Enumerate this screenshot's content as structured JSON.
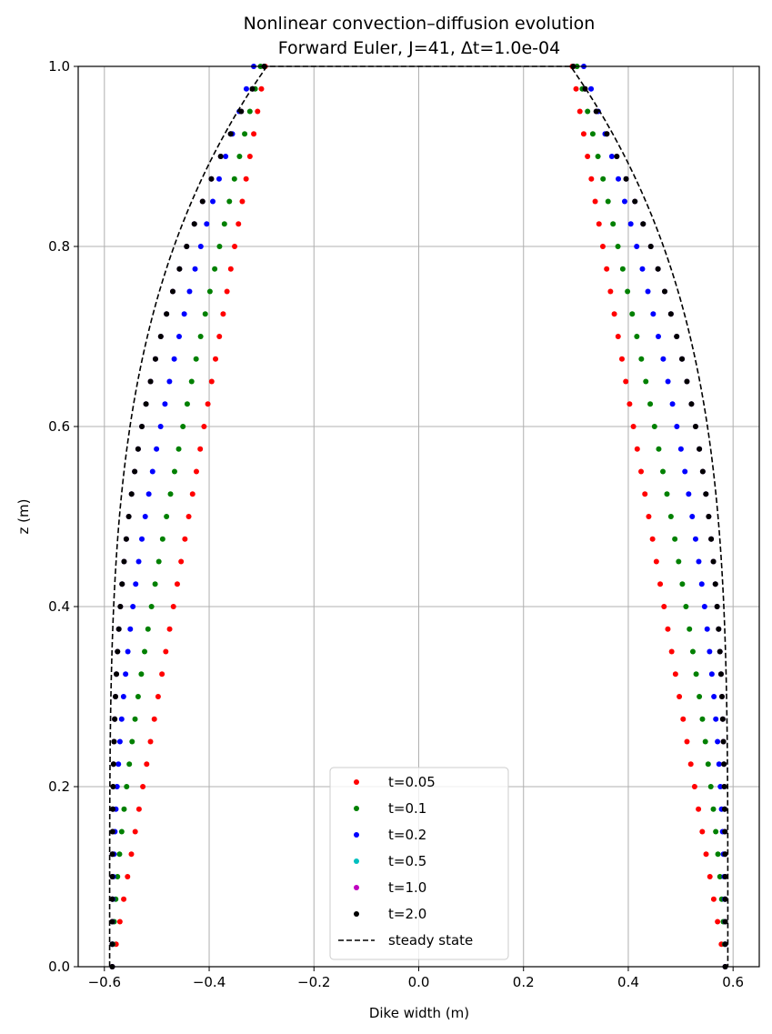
{
  "chart_data": {
    "type": "scatter",
    "title": [
      "Nonlinear convection–diffusion evolution",
      "Forward Euler, J=41, Δt=1.0e-04"
    ],
    "xlabel": "Dike width (m)",
    "ylabel": "z (m)",
    "xlim": [
      -0.65,
      0.65
    ],
    "ylim": [
      0.0,
      1.0
    ],
    "xticks": [
      "−0.6",
      "−0.4",
      "−0.2",
      "0.0",
      "0.2",
      "0.4",
      "0.6"
    ],
    "xtick_values": [
      -0.6,
      -0.4,
      -0.2,
      0.0,
      0.2,
      0.4,
      0.6
    ],
    "yticks": [
      "0.0",
      "0.2",
      "0.4",
      "0.6",
      "0.8",
      "1.0"
    ],
    "ytick_values": [
      0.0,
      0.2,
      0.4,
      0.6,
      0.8,
      1.0
    ],
    "grid": true,
    "legend_position": "bottom-center",
    "nodes": 41,
    "series": [
      {
        "name": "t=0.05",
        "color": "#ff0000",
        "kind": "points",
        "w_base": 0.585,
        "w_top": 0.293,
        "p": 1.0
      },
      {
        "name": "t=0.1",
        "color": "#008000",
        "kind": "points",
        "w_base": 0.585,
        "w_top": 0.302,
        "p": 1.45
      },
      {
        "name": "t=0.2",
        "color": "#0000ff",
        "kind": "points",
        "w_base": 0.585,
        "w_top": 0.315,
        "p": 2.1
      },
      {
        "name": "t=0.5",
        "color": "#00bfbf",
        "kind": "points",
        "w_base": 0.585,
        "w_top": 0.295,
        "p": 3.2
      },
      {
        "name": "t=1.0",
        "color": "#bf00bf",
        "kind": "points",
        "w_base": 0.585,
        "w_top": 0.295,
        "p": 3.2
      },
      {
        "name": "t=2.0",
        "color": "#000000",
        "kind": "points",
        "w_base": 0.585,
        "w_top": 0.295,
        "p": 3.2
      },
      {
        "name": "steady state",
        "color": "#000000",
        "kind": "dashed-line",
        "w_base": 0.59,
        "w_top": 0.29,
        "p": 4.0
      }
    ]
  }
}
